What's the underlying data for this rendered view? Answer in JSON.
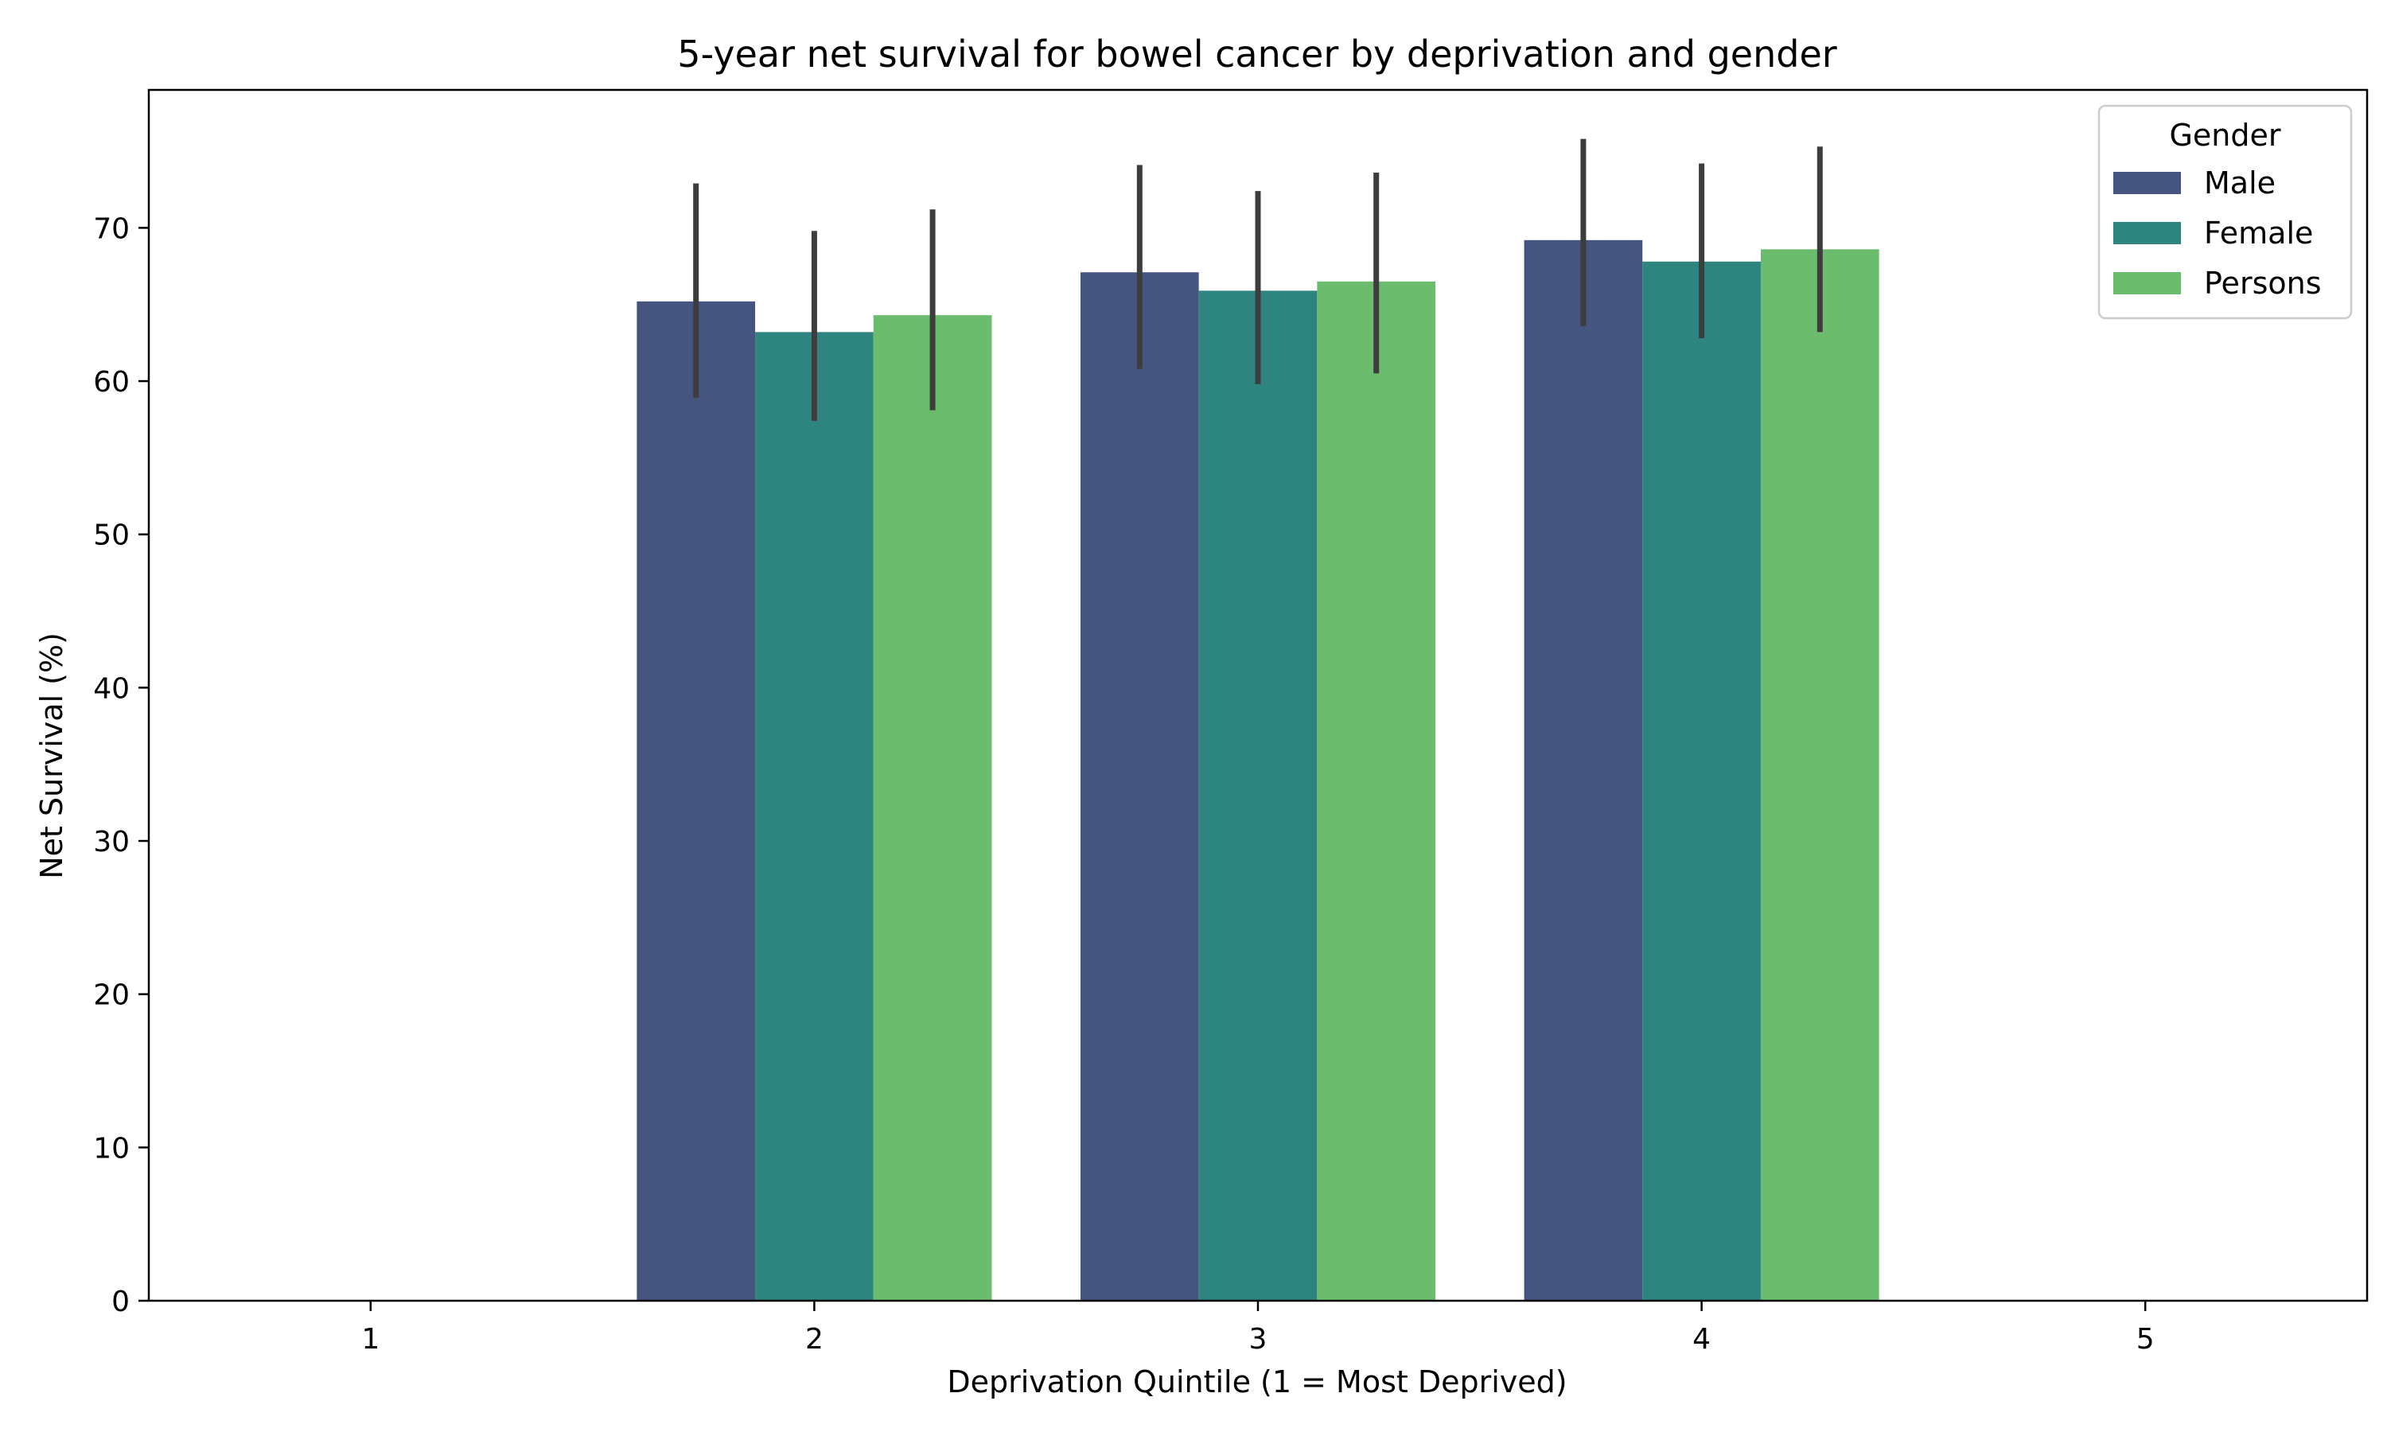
{
  "chart_data": {
    "type": "bar",
    "title": "5-year net survival for bowel cancer by deprivation and gender",
    "xlabel": "Deprivation Quintile (1 = Most Deprived)",
    "ylabel": "Net Survival (%)",
    "categories": [
      "1",
      "2",
      "3",
      "4",
      "5"
    ],
    "yticks": [
      0,
      10,
      20,
      30,
      40,
      50,
      60,
      70
    ],
    "ylim": [
      0,
      79
    ],
    "grid": false,
    "legend": {
      "title": "Gender",
      "placement": "top-right"
    },
    "series": [
      {
        "name": "Male",
        "color": "#46557f",
        "values": [
          null,
          65.2,
          67.1,
          69.2,
          null
        ],
        "error_low": [
          null,
          58.9,
          60.8,
          63.6,
          null
        ],
        "error_high": [
          null,
          72.9,
          74.1,
          75.8,
          null
        ]
      },
      {
        "name": "Female",
        "color": "#2e847e",
        "values": [
          null,
          63.2,
          65.9,
          67.8,
          null
        ],
        "error_low": [
          null,
          57.4,
          59.8,
          62.8,
          null
        ],
        "error_high": [
          null,
          69.8,
          72.4,
          74.2,
          null
        ]
      },
      {
        "name": "Persons",
        "color": "#6bbc6c",
        "values": [
          null,
          64.3,
          66.5,
          68.6,
          null
        ],
        "error_low": [
          null,
          58.1,
          60.5,
          63.2,
          null
        ],
        "error_high": [
          null,
          71.2,
          73.6,
          75.3,
          null
        ]
      }
    ]
  }
}
